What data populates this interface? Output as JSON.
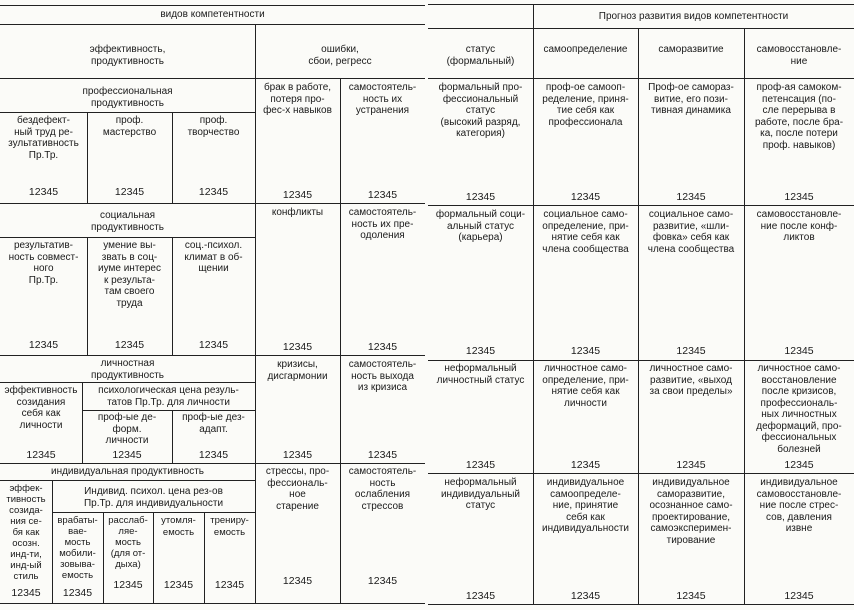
{
  "left": {
    "title": "видов компетентности",
    "efficiency_header": "эффективность,\nпродуктивность",
    "errors_header": "ошибки,\nсбои, регресс",
    "professional": {
      "header": "профессиональная\nпродуктивность",
      "cells": [
        "бездефект-\nный труд ре-\nзультативность\nПр.Тр.",
        "проф.\nмастерство",
        "проф.\nтворчество",
        "брак в работе,\nпотеря про-\nфес-х навыков",
        "самостоятель-\nность их\nустранения"
      ],
      "values": [
        "12345",
        "12345",
        "12345",
        "12345",
        "12345"
      ]
    },
    "social": {
      "header": "социальная\nпродуктивность",
      "cells": [
        "результатив-\nность совмест-\nного\nПр.Тр.",
        "умение вы-\nзвать в соц-\nиуме интерес\nк результа-\nтам своего\nтруда",
        "соц.-психол.\nклимат в об-\nщении",
        "конфликты",
        "самостоятель-\nность их пре-\nодоления"
      ],
      "values": [
        "12345",
        "12345",
        "12345",
        "12345",
        "12345"
      ]
    },
    "personal": {
      "header": "личностная\nпродуктивность",
      "subheader": "психологическая цена резуль-\nтатов Пр.Тр. для личности",
      "cells": [
        "эффективность\nсозидания\nсебя как\nличности",
        "проф-ые де-\nформ.\nличности",
        "проф-ые дез-\nадапт.",
        "кризисы,\nдисгармонии",
        "самостоятель-\nность выхода\nиз кризиса"
      ],
      "values": [
        "12345",
        "12345",
        "12345",
        "12345",
        "12345"
      ]
    },
    "individual": {
      "header": "индивидуальная продуктивность",
      "subheader": "Индивид. психол. цена рез-ов\nПр.Тр. для индивидуальности",
      "cells": [
        "эффек-\nтивность\nсозида-\nния се-\nбя как\nосозн.\nинд-ти,\nинд-ый\nстиль",
        "врабаты-\nвае-\nмость\nмобили-\nзовыва-\nемость",
        "расслаб-\nляе-\nмость\n(для от-\nдыха)",
        "утомля-\nемость",
        "трениру-\nемость",
        "стрессы, про-\nфессиональ-\nное\nстарение",
        "самостоятель-\nность\nослабления\nстрессов"
      ],
      "values": [
        "12345",
        "12345",
        "12345",
        "12345",
        "12345",
        "12345",
        "12345"
      ]
    }
  },
  "right": {
    "title": "Прогноз развития видов компетентности",
    "headers": [
      "статус\n(формальный)",
      "самоопределение",
      "саморазвитие",
      "самовосстановле-\nние"
    ],
    "rows": [
      {
        "cells": [
          "формальный про-\nфессиональный\nстатус\n(высокий разряд,\nкатегория)",
          "проф-ое самооп-\nределение, приня-\nтие себя как\nпрофессионала",
          "Проф-ое самораз-\nвитие, его пози-\nтивная динамика",
          "проф-ая самоком-\nпетенсация (по-\nсле перерыва в\nработе, после бра-\nка, после потери\nпроф. навыков)"
        ],
        "values": [
          "12345",
          "12345",
          "12345",
          "12345"
        ]
      },
      {
        "cells": [
          "формальный соци-\nальный статус\n(карьера)",
          "социальное само-\nопределение, при-\nнятие себя как\nчлена сообщества",
          "социальное само-\nразвитие, «шли-\nфовка» себя как\nчлена сообщества",
          "самовосстановле-\nние после конф-\nликтов"
        ],
        "values": [
          "12345",
          "12345",
          "12345",
          "12345"
        ]
      },
      {
        "cells": [
          "неформальный\nличностный статус",
          "личностное само-\nопределение, при-\nнятие себя как\nличности",
          "личностное само-\nразвитие, «выход\nза свои пределы»",
          "личностное само-\nвосстановление\nпосле кризисов,\nпрофессиональ-\nных личностных\nдеформаций, про-\nфессиональных\nболезней"
        ],
        "values": [
          "12345",
          "12345",
          "12345",
          "12345"
        ]
      },
      {
        "cells": [
          "неформальный\nиндивидуальный\nстатус",
          "индивидуальное\nсамоопределе-\nние, принятие\nсебя как\nиндивидуальности",
          "индивидуальное\nсаморазвитие,\nосознанное само-\nпроектирование,\nсамоэксперимен-\nтирование",
          "индивидуальное\nсамовосстановле-\nние после стрес-\nсов, давления\nизвне"
        ],
        "values": [
          "12345",
          "12345",
          "12345",
          "12345"
        ]
      }
    ]
  }
}
